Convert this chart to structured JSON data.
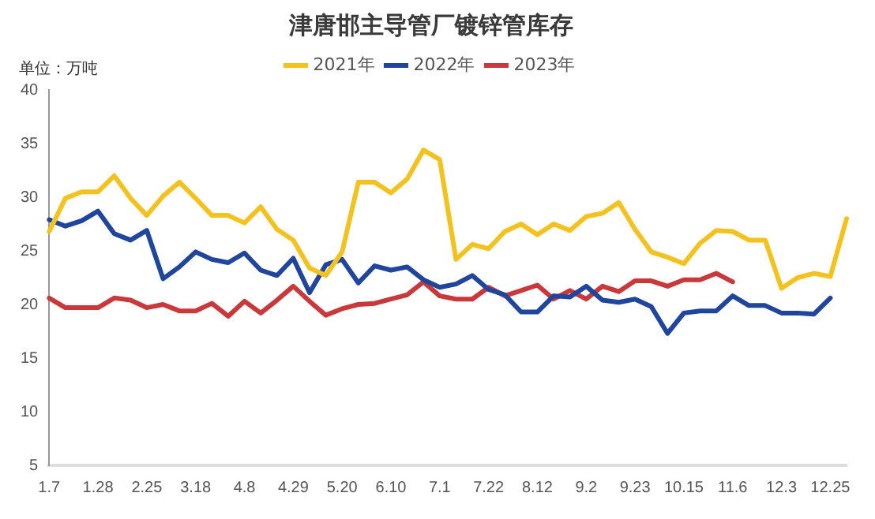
{
  "chart_data": {
    "type": "line",
    "title": "津唐邯主导管厂镀锌管库存",
    "ylabel": "单位：万吨",
    "categories": [
      "1.7",
      null,
      null,
      "1.28",
      null,
      null,
      "2.25",
      null,
      null,
      "3.18",
      null,
      null,
      "4.8",
      null,
      null,
      "4.29",
      null,
      null,
      "5.20",
      null,
      null,
      "6.10",
      null,
      null,
      "7.1",
      null,
      null,
      "7.22",
      null,
      null,
      "8.12",
      null,
      null,
      "9.2",
      null,
      null,
      "9.23",
      null,
      null,
      "10.15",
      null,
      null,
      "11.6",
      null,
      null,
      "12.3",
      null,
      null,
      "12.25",
      null
    ],
    "series": [
      {
        "name": "2021年",
        "color": "#f4c21f",
        "values": [
          26.8,
          29.9,
          30.5,
          30.5,
          32.0,
          29.9,
          28.3,
          30.1,
          31.4,
          29.9,
          28.3,
          28.3,
          27.6,
          29.1,
          27.0,
          26.0,
          23.4,
          22.7,
          24.9,
          31.4,
          31.4,
          30.4,
          31.7,
          34.4,
          33.5,
          24.2,
          25.6,
          25.2,
          26.8,
          27.5,
          26.5,
          27.5,
          26.9,
          28.2,
          28.5,
          29.5,
          27.0,
          24.9,
          24.4,
          23.8,
          25.7,
          26.9,
          26.8,
          26.0,
          26.0,
          21.5,
          22.5,
          22.9,
          22.6,
          28.0
        ]
      },
      {
        "name": "2022年",
        "color": "#1f459c",
        "values": [
          27.9,
          27.3,
          27.8,
          28.7,
          26.6,
          26.0,
          26.9,
          22.4,
          23.5,
          24.9,
          24.2,
          23.9,
          24.8,
          23.2,
          22.7,
          24.3,
          21.1,
          23.7,
          24.2,
          22.0,
          23.6,
          23.2,
          23.5,
          22.3,
          21.6,
          21.9,
          22.7,
          21.4,
          20.9,
          19.3,
          19.3,
          20.8,
          20.7,
          21.7,
          20.4,
          20.2,
          20.5,
          19.8,
          17.3,
          19.2,
          19.4,
          19.4,
          20.8,
          19.9,
          19.9,
          19.2,
          19.2,
          19.1,
          20.6,
          null
        ]
      },
      {
        "name": "2023年",
        "color": "#c9393b",
        "values": [
          20.6,
          19.7,
          19.7,
          19.7,
          20.6,
          20.4,
          19.7,
          20.0,
          19.4,
          19.4,
          20.1,
          18.9,
          20.3,
          19.2,
          20.4,
          21.7,
          20.3,
          19.0,
          19.6,
          20.0,
          20.1,
          20.5,
          20.9,
          22.1,
          20.8,
          20.5,
          20.5,
          21.6,
          20.8,
          21.3,
          21.8,
          20.5,
          21.3,
          20.5,
          21.7,
          21.2,
          22.2,
          22.2,
          21.7,
          22.3,
          22.3,
          22.9,
          22.1,
          null,
          null,
          null,
          null,
          null,
          null,
          null
        ]
      }
    ],
    "ylim": [
      5,
      40
    ],
    "yticks": [
      5,
      10,
      15,
      20,
      25,
      30,
      35,
      40
    ],
    "grid": false,
    "legend": "top",
    "marker": "none",
    "line_style": "solid"
  }
}
